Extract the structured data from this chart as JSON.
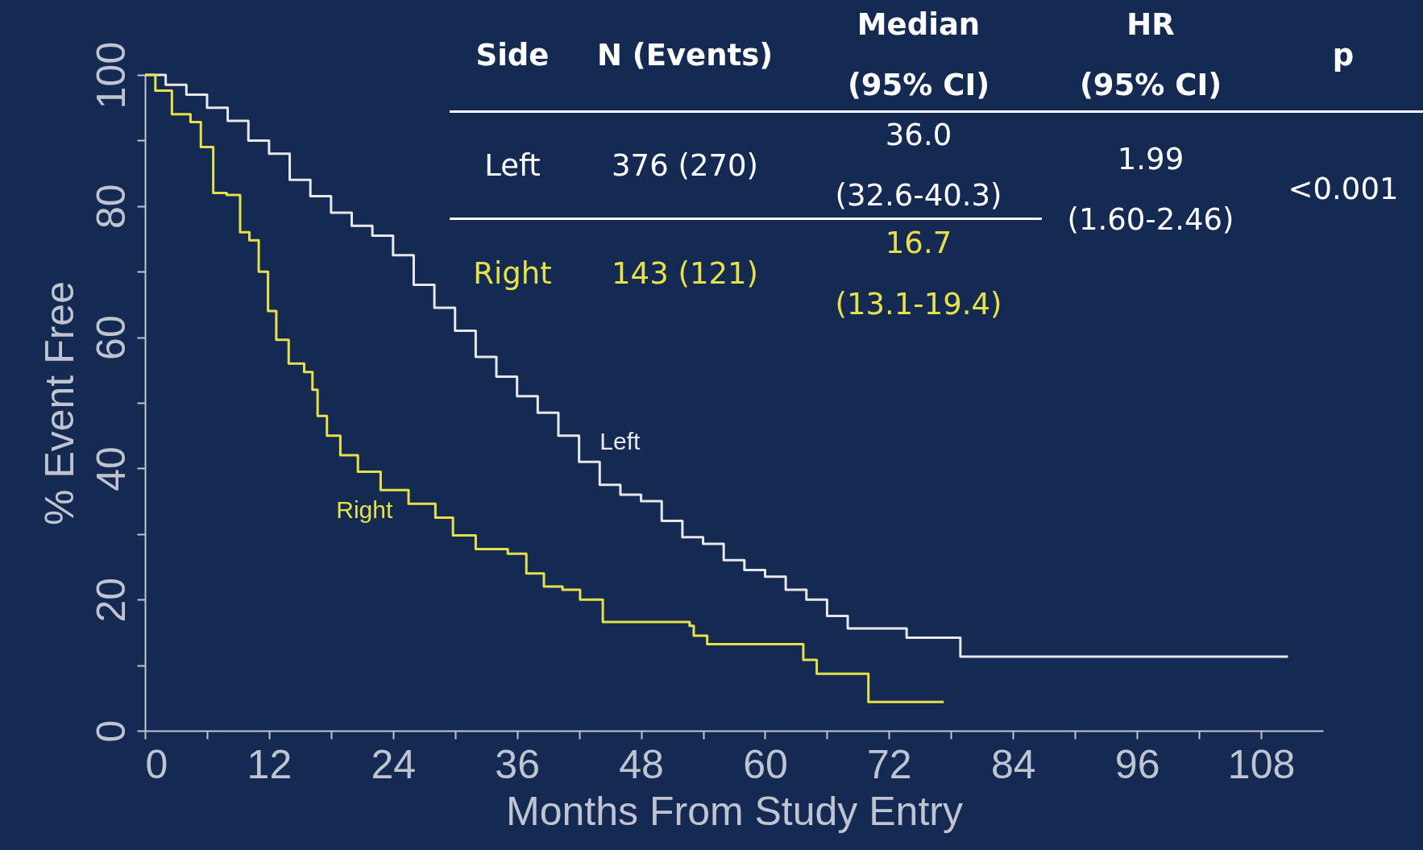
{
  "chart_data": {
    "type": "step",
    "xlabel": "Months From Study Entry",
    "ylabel": "% Event Free",
    "xlim": [
      0,
      114
    ],
    "ylim": [
      0,
      100
    ],
    "xticks": [
      0,
      {
        "value": 6,
        "label": null
      },
      12,
      {
        "value": 18,
        "label": null
      },
      24,
      {
        "value": 30,
        "label": null
      },
      36,
      {
        "value": 42,
        "label": null
      },
      48,
      {
        "value": 54,
        "label": null
      },
      60,
      {
        "value": 66,
        "label": null
      },
      72,
      {
        "value": 78,
        "label": null
      },
      84,
      {
        "value": 90,
        "label": null
      },
      96,
      {
        "value": 102,
        "label": null
      },
      108
    ],
    "yticks": [
      0,
      {
        "value": 10,
        "label": null
      },
      20,
      {
        "value": 30,
        "label": null
      },
      40,
      {
        "value": 50,
        "label": null
      },
      60,
      {
        "value": 70,
        "label": null
      },
      80,
      {
        "value": 90,
        "label": null
      },
      100
    ],
    "grid": false,
    "legend": false,
    "marker": "none",
    "line_style": "solid",
    "series": [
      {
        "name": "Left",
        "color": "#e8e8e8",
        "x": [
          0,
          2,
          4,
          6,
          8,
          10,
          12,
          14,
          16,
          18,
          20,
          22,
          24,
          26,
          28,
          30,
          32,
          34,
          36,
          38,
          40,
          42,
          44,
          46,
          48,
          50,
          52,
          54,
          56,
          58,
          60,
          62,
          64,
          66,
          68,
          73.7,
          78.9,
          110.6
        ],
        "values": [
          100,
          98.5,
          97,
          95,
          93,
          90,
          88,
          84,
          81.5,
          79,
          77,
          75.5,
          72.5,
          68,
          64.5,
          61,
          57,
          54,
          51,
          48.5,
          45,
          41,
          37.5,
          36,
          35,
          32,
          29.5,
          28.5,
          26,
          24.5,
          23.5,
          21.5,
          20,
          17.5,
          15.6,
          14.2,
          11.3,
          11.3
        ]
      },
      {
        "name": "Right",
        "color": "#e6e04a",
        "x": [
          0,
          1,
          2.6,
          4.4,
          5.4,
          6.6,
          7.9,
          9.2,
          10.1,
          11,
          11.9,
          12.7,
          13.9,
          15.4,
          16.2,
          16.7,
          17.6,
          18.9,
          20.6,
          22.8,
          25.5,
          28.1,
          29.8,
          32,
          35.1,
          36.9,
          38.6,
          40.4,
          42.1,
          44.3,
          52.7,
          53.1,
          54.4,
          63.7,
          65,
          70,
          77.3
        ],
        "values": [
          100,
          97.6,
          94,
          92.8,
          89,
          82,
          81.7,
          76,
          74.8,
          70,
          64,
          59.6,
          56,
          54.7,
          52,
          48,
          45,
          42,
          39.5,
          36.7,
          34.6,
          32.5,
          29.8,
          27.7,
          27,
          24,
          22,
          21.5,
          20,
          16.6,
          16,
          14.5,
          13.2,
          10.8,
          8.7,
          4.4,
          4.4
        ]
      }
    ],
    "annotations": [
      "Side",
      "N (Events)",
      "Median",
      "(95% CI)",
      "HR",
      "(95% CI)",
      "p",
      "Left",
      "376 (270)",
      "36.0",
      "(32.6-40.3)",
      "1.99",
      "(1.60-2.46)",
      "<0.001",
      "Right",
      "143 (121)",
      "16.7",
      "(13.1-19.4)"
    ]
  }
}
